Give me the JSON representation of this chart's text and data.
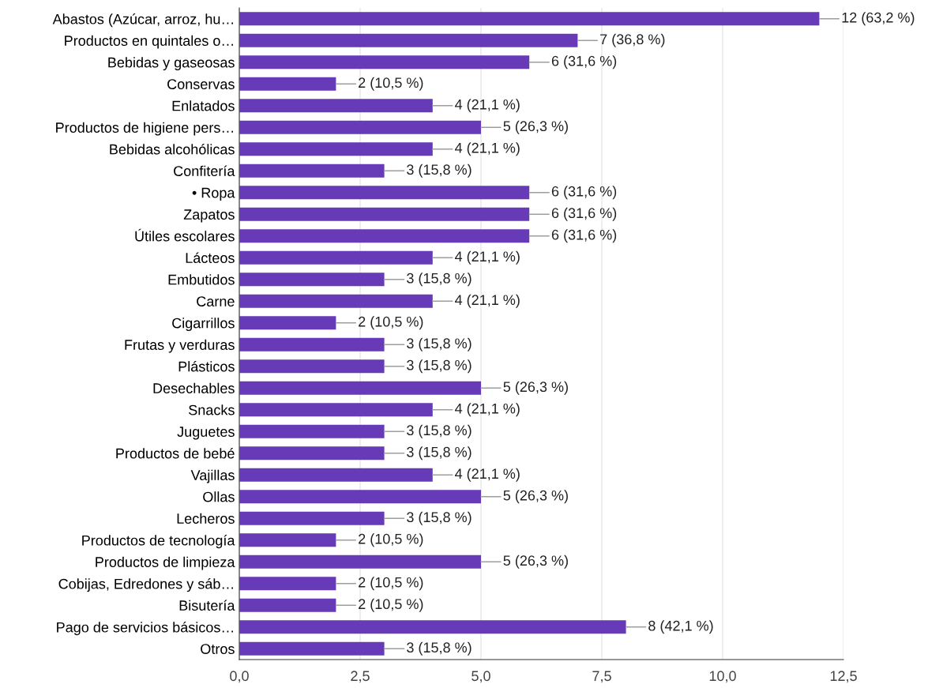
{
  "chart_data": {
    "type": "bar",
    "orientation": "horizontal",
    "color": "#673ab7",
    "categories": [
      "Abastos (Azúcar, arroz, hu…",
      "Productos en quintales o…",
      "Bebidas y gaseosas",
      "Conservas",
      "Enlatados",
      "Productos de higiene pers…",
      "Bebidas alcohólicas",
      "Confitería",
      "• Ropa",
      "Zapatos",
      "Útiles escolares",
      "Lácteos",
      "Embutidos",
      "Carne",
      "Cigarrillos",
      "Frutas y verduras",
      "Plásticos",
      "Desechables",
      "Snacks",
      "Juguetes",
      "Productos de bebé",
      "Vajillas",
      "Ollas",
      "Lecheros",
      "Productos de tecnología",
      "Productos de limpieza",
      "Cobijas, Edredones y sáb…",
      "Bisutería",
      "Pago de servicios básicos…",
      "Otros"
    ],
    "values": [
      12,
      7,
      6,
      2,
      4,
      5,
      4,
      3,
      6,
      6,
      6,
      4,
      3,
      4,
      2,
      3,
      3,
      5,
      4,
      3,
      3,
      4,
      5,
      3,
      2,
      5,
      2,
      2,
      8,
      3
    ],
    "value_labels": [
      "12 (63,2 %)",
      "7 (36,8 %)",
      "6 (31,6 %)",
      "2 (10,5 %)",
      "4 (21,1 %)",
      "5 (26,3 %)",
      "4 (21,1 %)",
      "3 (15,8 %)",
      "6 (31,6 %)",
      "6 (31,6 %)",
      "6 (31,6 %)",
      "4 (21,1 %)",
      "3 (15,8 %)",
      "4 (21,1 %)",
      "2 (10,5 %)",
      "3 (15,8 %)",
      "3 (15,8 %)",
      "5 (26,3 %)",
      "4 (21,1 %)",
      "3 (15,8 %)",
      "3 (15,8 %)",
      "4 (21,1 %)",
      "5 (26,3 %)",
      "3 (15,8 %)",
      "2 (10,5 %)",
      "5 (26,3 %)",
      "2 (10,5 %)",
      "2 (10,5 %)",
      "8 (42,1 %)",
      "3 (15,8 %)"
    ],
    "xlim": [
      0,
      12.5
    ],
    "xticks": [
      {
        "value": 0,
        "label": "0,0"
      },
      {
        "value": 2.5,
        "label": "2,5"
      },
      {
        "value": 5,
        "label": "5,0"
      },
      {
        "value": 7.5,
        "label": "7,5"
      },
      {
        "value": 10,
        "label": "10,0"
      },
      {
        "value": 12.5,
        "label": "12,5"
      }
    ],
    "grid": "x"
  }
}
